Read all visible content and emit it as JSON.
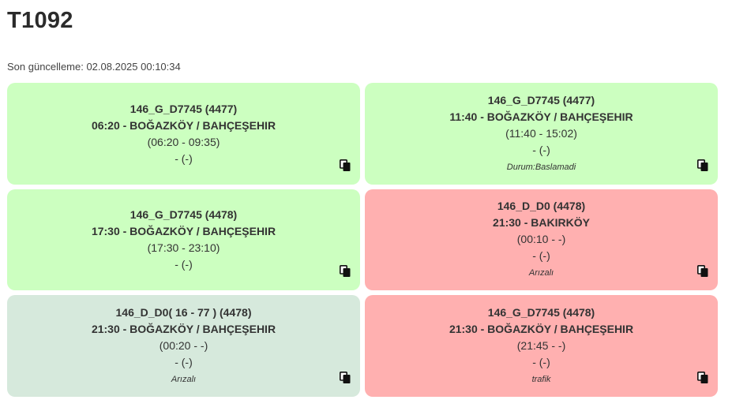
{
  "page": {
    "title": "T1092",
    "last_update": "Son güncelleme: 02.08.2025 00:10:34"
  },
  "colors": {
    "green": "#ccffc0",
    "red": "#ffb0b0",
    "gray": "#d6e9dc"
  },
  "cards": [
    {
      "color": "green",
      "code": "146_G_D7745 (4477)",
      "route": "06:20 - BOĞAZKÖY / BAHÇEŞEHIR",
      "times": "(06:20 - 09:35)",
      "extra": "- (-)",
      "status": "",
      "icon": "copy-icon"
    },
    {
      "color": "green",
      "code": "146_G_D7745 (4477)",
      "route": "11:40 - BOĞAZKÖY / BAHÇEŞEHIR",
      "times": "(11:40 - 15:02)",
      "extra": "- (-)",
      "status": "Durum:Baslamadi",
      "icon": "copy-icon"
    },
    {
      "color": "green",
      "code": "146_G_D7745 (4478)",
      "route": "17:30 - BOĞAZKÖY / BAHÇEŞEHIR",
      "times": "(17:30 - 23:10)",
      "extra": "- (-)",
      "status": "",
      "icon": "copy-icon"
    },
    {
      "color": "red",
      "code": "146_D_D0 (4478)",
      "route": "21:30 - BAKIRKÖY",
      "times": "(00:10 - -)",
      "extra": "- (-)",
      "status": "Arızalı",
      "icon": "copy-icon"
    },
    {
      "color": "gray",
      "code": "146_D_D0( 16 - 77 ) (4478)",
      "route": "21:30 - BOĞAZKÖY / BAHÇEŞEHIR",
      "times": "(00:20 - -)",
      "extra": "- (-)",
      "status": "Arızalı",
      "icon": "copy-icon"
    },
    {
      "color": "red",
      "code": "146_G_D7745 (4478)",
      "route": "21:30 - BOĞAZKÖY / BAHÇEŞEHIR",
      "times": "(21:45 - -)",
      "extra": "- (-)",
      "status": "trafik",
      "icon": "copy-icon"
    }
  ]
}
